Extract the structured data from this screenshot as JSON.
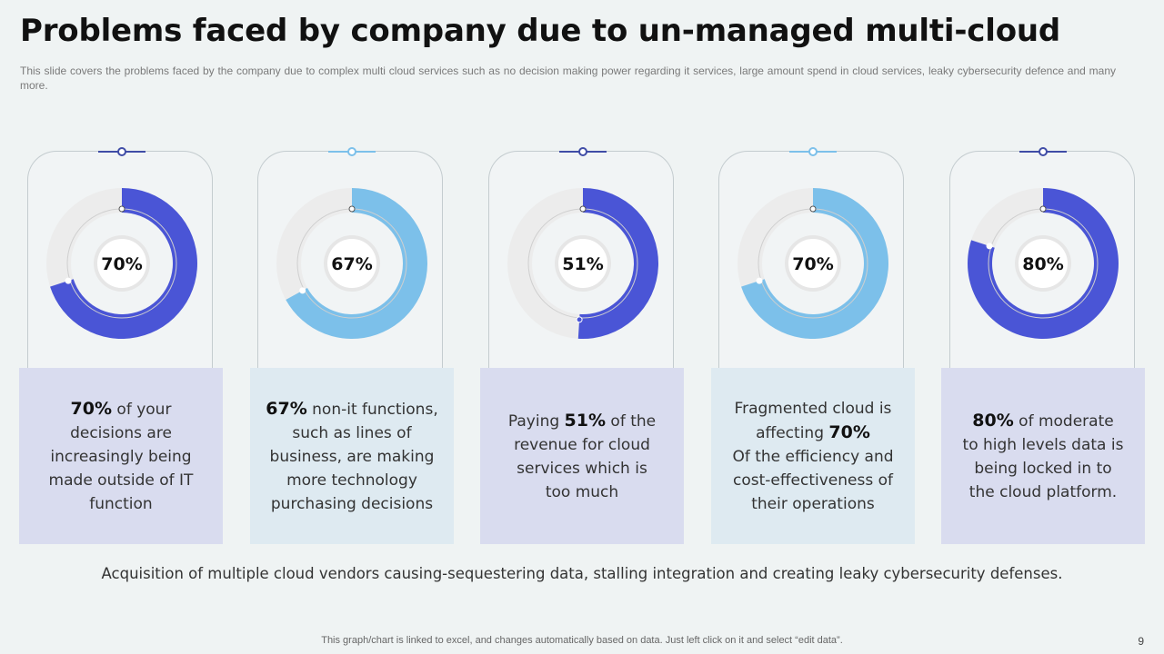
{
  "slide": {
    "title": "Problems faced by company due to un-managed multi-cloud",
    "subtitle": "This slide covers the problems faced by the company due to complex multi cloud services such as no decision making power regarding it services, large amount spend in cloud services, leaky cybersecurity defence and many more.",
    "caption": "Acquisition of multiple cloud vendors causing-sequestering  data, stalling integration and creating leaky cybersecurity  defenses.",
    "footer": "This graph/chart is linked to excel, and changes automatically based on data. Just left click on it and select “edit data”.",
    "page_number": "9"
  },
  "colors": {
    "dark": "#4a55d6",
    "light": "#7cc0ea",
    "track": "#ececec",
    "box_dark": "#d9dcef",
    "box_light": "#deeaf1"
  },
  "chart_data": {
    "type": "pie",
    "series": [
      {
        "label": "70%",
        "value": 70,
        "color": "#4a55d6"
      },
      {
        "label": "67%",
        "value": 67,
        "color": "#7cc0ea"
      },
      {
        "label": "51%",
        "value": 51,
        "color": "#4a55d6"
      },
      {
        "label": "70%",
        "value": 70,
        "color": "#7cc0ea"
      },
      {
        "label": "80%",
        "value": 80,
        "color": "#4a55d6"
      }
    ]
  },
  "cards": [
    {
      "bold": "70%",
      "text": " of your\ndecisions are\nincreasingly being\nmade outside of IT\nfunction",
      "bold_first": true
    },
    {
      "bold": "67%",
      "text": " non-it functions,\nsuch as lines of\nbusiness, are making\nmore technology\npurchasing decisions",
      "bold_first": true
    },
    {
      "pre": "Paying ",
      "bold": "51%",
      "text": " of the\nrevenue  for cloud\nservices  which is\ntoo much"
    },
    {
      "pre": "Fragmented cloud is\naffecting ",
      "bold": "70%",
      "text": "\nOf the efficiency and\ncost-effectiveness  of\ntheir operations"
    },
    {
      "bold": "80%",
      "text": " of moderate\nto high levels data is\nbeing locked in to\nthe cloud platform.",
      "bold_first": true
    }
  ]
}
